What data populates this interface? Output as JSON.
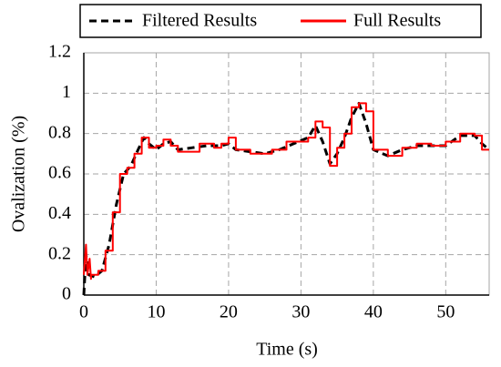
{
  "chart_data": {
    "type": "line",
    "x_label": "Time (s)",
    "y_label": "Ovalization (%)",
    "xlim": [
      0,
      56
    ],
    "xticks": [
      0,
      10,
      20,
      30,
      40,
      50
    ],
    "ylim": [
      0,
      1.2
    ],
    "yticks": [
      0,
      0.2,
      0.4,
      0.6,
      0.8,
      1,
      1.2
    ],
    "grid": true,
    "legend": "top",
    "series": [
      {
        "name": "Filtered Results",
        "color": "#000000",
        "style": "dashed",
        "x": [
          0,
          0.3,
          0.7,
          1.5,
          2.5,
          3.5,
          4.5,
          5.5,
          6.5,
          7.5,
          8.3,
          9,
          10,
          11,
          12,
          13,
          15,
          17,
          19,
          20,
          21,
          23,
          25,
          27,
          29,
          31,
          32,
          33,
          34,
          35,
          36,
          37,
          38,
          39,
          40,
          42,
          44,
          46,
          48,
          50,
          52,
          54,
          55,
          56
        ],
        "values": [
          0,
          0.2,
          0.1,
          0.09,
          0.12,
          0.25,
          0.45,
          0.6,
          0.64,
          0.72,
          0.78,
          0.75,
          0.72,
          0.75,
          0.76,
          0.72,
          0.73,
          0.74,
          0.74,
          0.75,
          0.72,
          0.71,
          0.7,
          0.72,
          0.75,
          0.78,
          0.84,
          0.76,
          0.65,
          0.7,
          0.78,
          0.88,
          0.95,
          0.85,
          0.72,
          0.69,
          0.72,
          0.74,
          0.74,
          0.74,
          0.79,
          0.79,
          0.75,
          0.72
        ]
      },
      {
        "name": "Full Results",
        "color": "#ff0000",
        "style": "solid",
        "x": [
          0,
          0.3,
          0.5,
          0.8,
          1,
          1,
          2,
          2,
          3,
          3,
          4,
          4,
          5,
          5,
          6,
          6,
          7,
          7,
          8,
          8,
          9,
          9,
          10,
          10,
          11,
          11,
          12,
          12,
          13,
          13,
          16,
          16,
          18,
          18,
          19,
          19,
          20,
          20,
          21,
          21,
          23,
          23,
          26,
          26,
          28,
          28,
          31,
          31,
          32,
          32,
          33,
          33,
          34,
          34,
          35,
          35,
          36,
          36,
          37,
          37,
          38,
          38,
          39,
          39,
          40,
          40,
          42,
          42,
          44,
          44,
          46,
          46,
          48,
          48,
          50,
          50,
          52,
          52,
          54,
          54,
          55,
          55,
          56
        ],
        "values": [
          0.1,
          0.25,
          0.1,
          0.18,
          0.08,
          0.1,
          0.1,
          0.12,
          0.12,
          0.22,
          0.22,
          0.41,
          0.41,
          0.6,
          0.6,
          0.63,
          0.63,
          0.7,
          0.7,
          0.78,
          0.78,
          0.73,
          0.73,
          0.74,
          0.74,
          0.77,
          0.77,
          0.74,
          0.74,
          0.71,
          0.71,
          0.75,
          0.75,
          0.73,
          0.73,
          0.75,
          0.75,
          0.78,
          0.78,
          0.72,
          0.72,
          0.7,
          0.7,
          0.72,
          0.72,
          0.76,
          0.76,
          0.78,
          0.78,
          0.86,
          0.86,
          0.83,
          0.83,
          0.64,
          0.64,
          0.73,
          0.73,
          0.8,
          0.8,
          0.93,
          0.93,
          0.95,
          0.95,
          0.91,
          0.91,
          0.72,
          0.72,
          0.69,
          0.69,
          0.73,
          0.73,
          0.75,
          0.75,
          0.74,
          0.74,
          0.76,
          0.76,
          0.8,
          0.8,
          0.79,
          0.79,
          0.72,
          0.72
        ]
      }
    ]
  }
}
